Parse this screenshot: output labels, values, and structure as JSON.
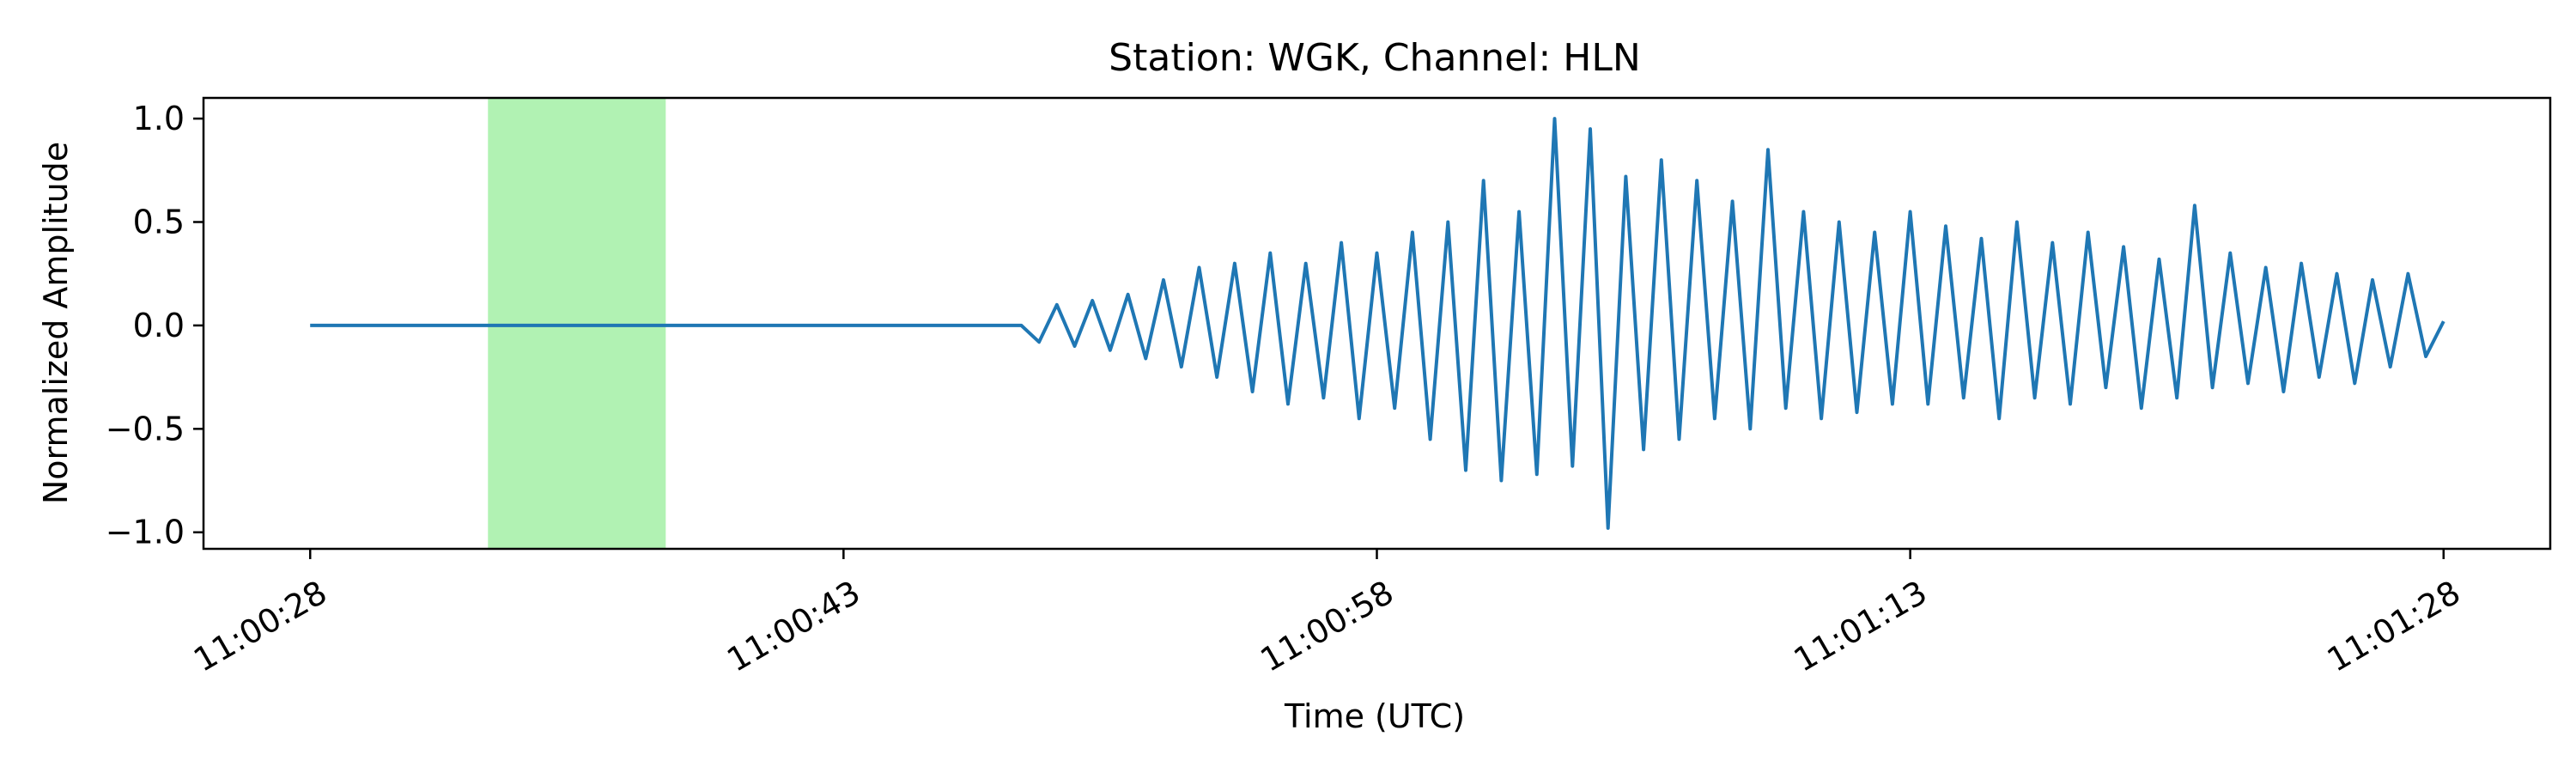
{
  "chart_data": {
    "type": "line",
    "title": "Station: WGK, Channel: HLN",
    "xlabel": "Time (UTC)",
    "ylabel": "Normalized Amplitude",
    "x_start": "11:00:28",
    "x_end": "11:01:28",
    "x_tick_labels": [
      "11:00:28",
      "11:00:43",
      "11:00:58",
      "11:01:13",
      "11:01:28"
    ],
    "y_ticks": [
      1.0,
      0.5,
      0.0,
      -0.5,
      -1.0
    ],
    "y_tick_labels": [
      "1.0",
      "0.5",
      "0.0",
      "−0.5",
      "−1.0"
    ],
    "ylim": [
      -1.08,
      1.1
    ],
    "xlim": [
      "11:00:25",
      "11:01:31"
    ],
    "grid": false,
    "highlight_span": {
      "start": "11:00:33",
      "end": "11:00:38",
      "color": "#b1f2b3"
    },
    "series": [
      {
        "color": "#1f77b4",
        "x": [
          "11:00:28",
          "11:00:38",
          "11:00:48",
          "11:00:48.5",
          "11:00:49",
          "11:00:49.5",
          "11:00:50",
          "11:00:50.5",
          "11:00:51",
          "11:00:51.5",
          "11:00:52",
          "11:00:52.5",
          "11:00:53",
          "11:00:53.5",
          "11:00:54",
          "11:00:54.5",
          "11:00:55",
          "11:00:55.5",
          "11:00:56",
          "11:00:56.5",
          "11:00:57",
          "11:00:57.5",
          "11:00:58",
          "11:00:58.5",
          "11:00:59",
          "11:00:59.5",
          "11:01:00",
          "11:01:00.5",
          "11:01:01",
          "11:01:01.5",
          "11:01:02",
          "11:01:02.5",
          "11:01:03",
          "11:01:03.5",
          "11:01:04",
          "11:01:04.5",
          "11:01:05",
          "11:01:05.5",
          "11:01:06",
          "11:01:06.5",
          "11:01:07",
          "11:01:07.5",
          "11:01:08",
          "11:01:08.5",
          "11:01:09",
          "11:01:09.5",
          "11:01:10",
          "11:01:10.5",
          "11:01:11",
          "11:01:11.5",
          "11:01:12",
          "11:01:12.5",
          "11:01:13",
          "11:01:13.5",
          "11:01:14",
          "11:01:14.5",
          "11:01:15",
          "11:01:15.5",
          "11:01:16",
          "11:01:16.5",
          "11:01:17",
          "11:01:17.5",
          "11:01:18",
          "11:01:18.5",
          "11:01:19",
          "11:01:19.5",
          "11:01:20",
          "11:01:20.5",
          "11:01:21",
          "11:01:21.5",
          "11:01:22",
          "11:01:22.5",
          "11:01:23",
          "11:01:23.5",
          "11:01:24",
          "11:01:24.5",
          "11:01:25",
          "11:01:25.5",
          "11:01:26",
          "11:01:26.5",
          "11:01:27",
          "11:01:27.5",
          "11:01:28"
        ],
        "y": [
          0.0,
          0.0,
          0.0,
          -0.08,
          0.1,
          -0.1,
          0.12,
          -0.12,
          0.15,
          -0.16,
          0.22,
          -0.2,
          0.28,
          -0.25,
          0.3,
          -0.32,
          0.35,
          -0.38,
          0.3,
          -0.35,
          0.4,
          -0.45,
          0.35,
          -0.4,
          0.45,
          -0.55,
          0.5,
          -0.7,
          0.7,
          -0.75,
          0.55,
          -0.72,
          1.0,
          -0.68,
          0.95,
          -0.98,
          0.72,
          -0.6,
          0.8,
          -0.55,
          0.7,
          -0.45,
          0.6,
          -0.5,
          0.85,
          -0.4,
          0.55,
          -0.45,
          0.5,
          -0.42,
          0.45,
          -0.38,
          0.55,
          -0.38,
          0.48,
          -0.35,
          0.42,
          -0.45,
          0.5,
          -0.35,
          0.4,
          -0.38,
          0.45,
          -0.3,
          0.38,
          -0.4,
          0.32,
          -0.35,
          0.58,
          -0.3,
          0.35,
          -0.28,
          0.28,
          -0.32,
          0.3,
          -0.25,
          0.25,
          -0.28,
          0.22,
          -0.2,
          0.25,
          -0.15,
          0.02
        ]
      }
    ]
  }
}
